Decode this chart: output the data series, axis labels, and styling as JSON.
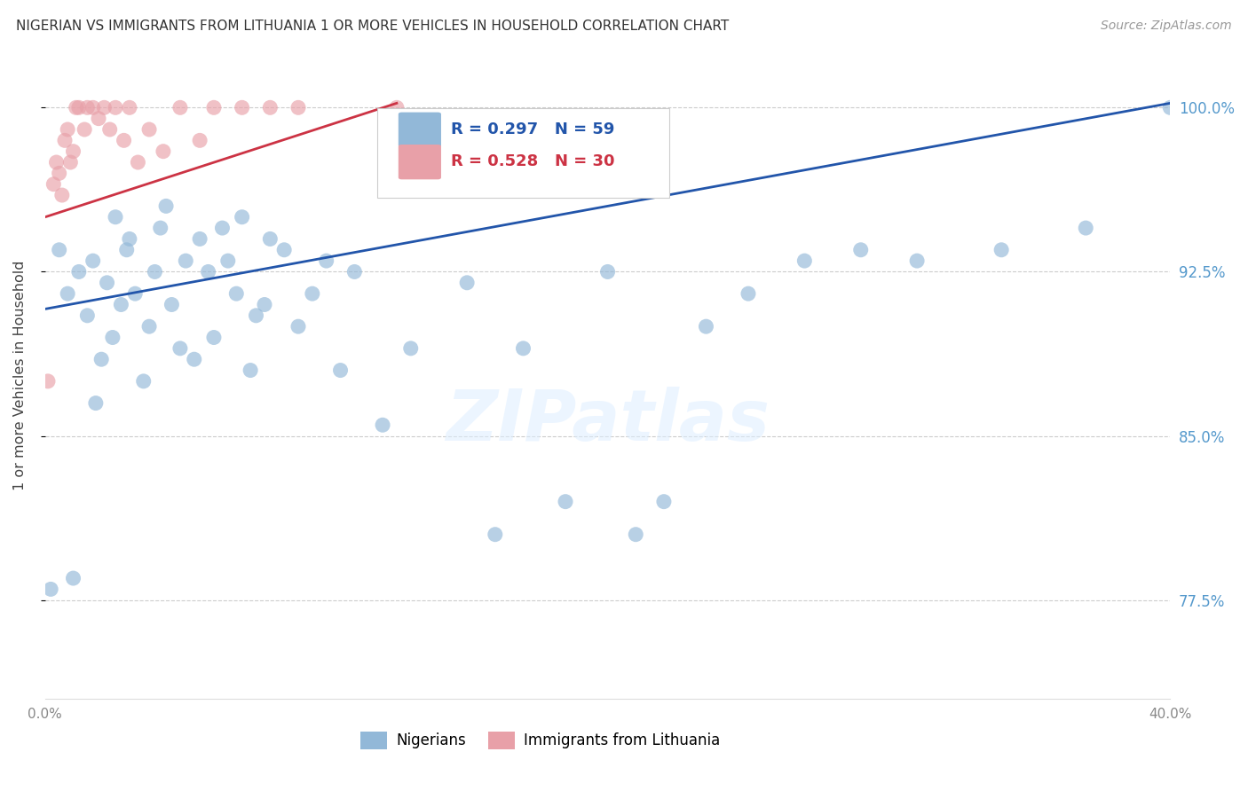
{
  "title": "NIGERIAN VS IMMIGRANTS FROM LITHUANIA 1 OR MORE VEHICLES IN HOUSEHOLD CORRELATION CHART",
  "source": "Source: ZipAtlas.com",
  "ylabel": "1 or more Vehicles in Household",
  "y_ticks": [
    77.5,
    85.0,
    92.5,
    100.0
  ],
  "y_tick_labels": [
    "77.5%",
    "85.0%",
    "92.5%",
    "100.0%"
  ],
  "xlim": [
    0.0,
    40.0
  ],
  "ylim": [
    73.0,
    102.5
  ],
  "blue_R": 0.297,
  "blue_N": 59,
  "pink_R": 0.528,
  "pink_N": 30,
  "blue_color": "#92b8d8",
  "pink_color": "#e8a0a8",
  "blue_line_color": "#2255aa",
  "pink_line_color": "#cc3344",
  "legend_blue_label": "Nigerians",
  "legend_pink_label": "Immigrants from Lithuania",
  "watermark": "ZIPatlas",
  "background_color": "#ffffff",
  "grid_color": "#cccccc",
  "blue_trend_x0": 0.0,
  "blue_trend_y0": 90.8,
  "blue_trend_x1": 40.0,
  "blue_trend_y1": 100.2,
  "pink_trend_x0": 0.0,
  "pink_trend_y0": 95.0,
  "pink_trend_x1": 12.5,
  "pink_trend_y1": 100.2,
  "blue_x": [
    0.2,
    0.5,
    0.8,
    1.0,
    1.2,
    1.5,
    1.7,
    1.8,
    2.0,
    2.2,
    2.4,
    2.5,
    2.7,
    2.9,
    3.0,
    3.2,
    3.5,
    3.7,
    3.9,
    4.1,
    4.3,
    4.5,
    4.8,
    5.0,
    5.3,
    5.5,
    5.8,
    6.0,
    6.3,
    6.5,
    6.8,
    7.0,
    7.3,
    7.5,
    7.8,
    8.0,
    8.5,
    9.0,
    9.5,
    10.0,
    10.5,
    11.0,
    12.0,
    13.0,
    15.0,
    16.0,
    17.0,
    18.5,
    20.0,
    21.0,
    22.0,
    23.5,
    25.0,
    27.0,
    29.0,
    31.0,
    34.0,
    37.0,
    40.0
  ],
  "blue_y": [
    78.0,
    93.5,
    91.5,
    78.5,
    92.5,
    90.5,
    93.0,
    86.5,
    88.5,
    92.0,
    89.5,
    95.0,
    91.0,
    93.5,
    94.0,
    91.5,
    87.5,
    90.0,
    92.5,
    94.5,
    95.5,
    91.0,
    89.0,
    93.0,
    88.5,
    94.0,
    92.5,
    89.5,
    94.5,
    93.0,
    91.5,
    95.0,
    88.0,
    90.5,
    91.0,
    94.0,
    93.5,
    90.0,
    91.5,
    93.0,
    88.0,
    92.5,
    85.5,
    89.0,
    92.0,
    80.5,
    89.0,
    82.0,
    92.5,
    80.5,
    82.0,
    90.0,
    91.5,
    93.0,
    93.5,
    93.0,
    93.5,
    94.5,
    100.0
  ],
  "pink_x": [
    0.1,
    0.3,
    0.4,
    0.5,
    0.6,
    0.7,
    0.8,
    0.9,
    1.0,
    1.1,
    1.2,
    1.4,
    1.5,
    1.7,
    1.9,
    2.1,
    2.3,
    2.5,
    2.8,
    3.0,
    3.3,
    3.7,
    4.2,
    4.8,
    5.5,
    6.0,
    7.0,
    8.0,
    9.0,
    12.5
  ],
  "pink_y": [
    87.5,
    96.5,
    97.5,
    97.0,
    96.0,
    98.5,
    99.0,
    97.5,
    98.0,
    100.0,
    100.0,
    99.0,
    100.0,
    100.0,
    99.5,
    100.0,
    99.0,
    100.0,
    98.5,
    100.0,
    97.5,
    99.0,
    98.0,
    100.0,
    98.5,
    100.0,
    100.0,
    100.0,
    100.0,
    100.0
  ]
}
